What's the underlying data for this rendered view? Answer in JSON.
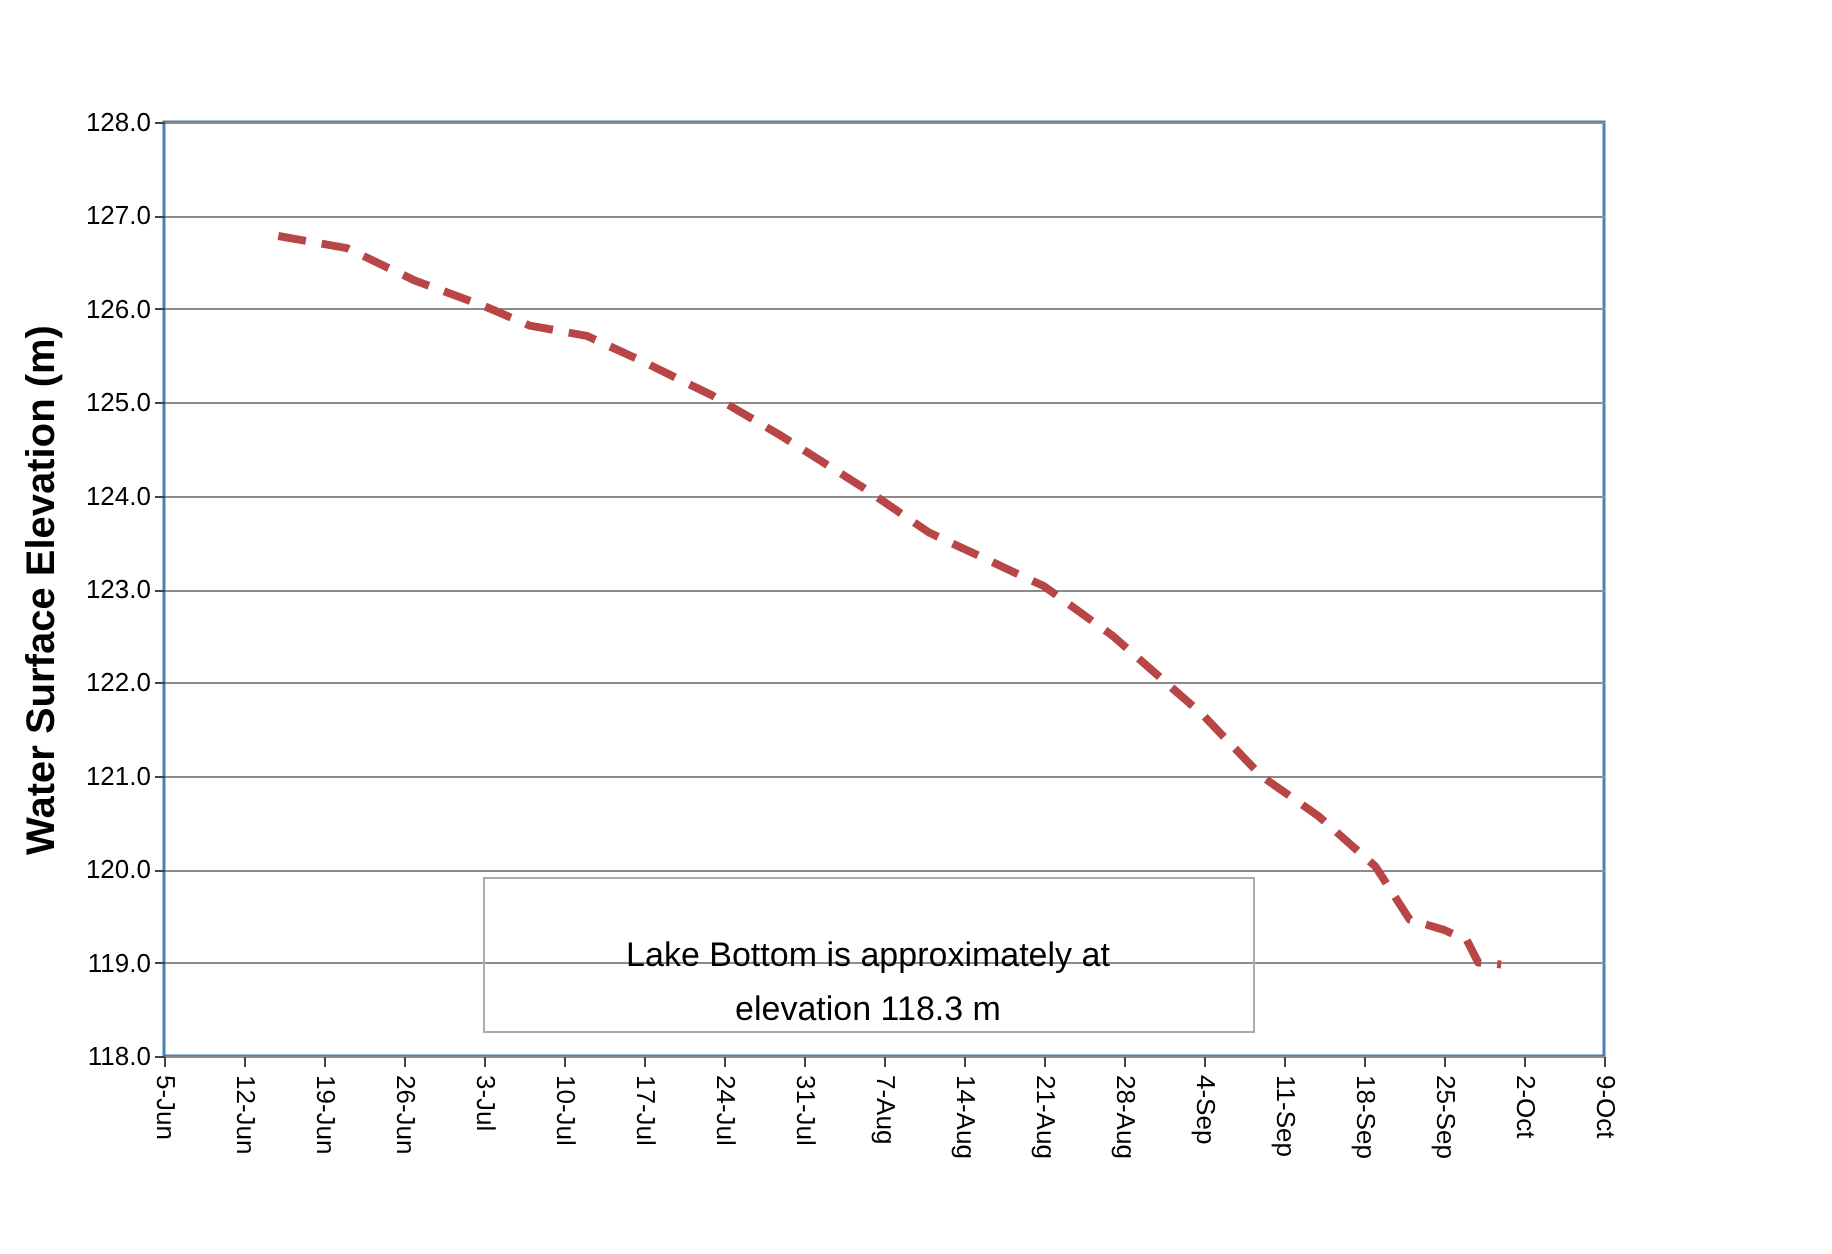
{
  "chart_data": {
    "type": "line",
    "ylabel": "Water Surface Elevation (m)",
    "x": [
      "--06-15",
      "--06-21",
      "--06-27",
      "--07-03",
      "--07-07",
      "--07-12",
      "--07-17",
      "--07-23",
      "--07-29",
      "--08-05",
      "--08-11",
      "--08-21",
      "--08-27",
      "--09-04",
      "--09-09",
      "--09-14",
      "--09-19",
      "--09-22",
      "--09-25",
      "--09-27",
      "--09-28",
      "--09-30"
    ],
    "series": [
      {
        "color": "#b94646",
        "values": [
          126.78,
          126.65,
          126.3,
          126.03,
          125.82,
          125.71,
          125.43,
          125.07,
          124.64,
          124.1,
          123.6,
          123.03,
          122.5,
          121.64,
          121.0,
          120.57,
          120.03,
          119.46,
          119.35,
          119.24,
          119.0,
          118.98
        ]
      }
    ],
    "xlim": [
      "--06-05",
      "--10-09"
    ],
    "xticks": [
      {
        "value": "--06-05",
        "label": "5-Jun"
      },
      {
        "value": "--06-12",
        "label": "12-Jun"
      },
      {
        "value": "--06-19",
        "label": "19-Jun"
      },
      {
        "value": "--06-26",
        "label": "26-Jun"
      },
      {
        "value": "--07-03",
        "label": "3-Jul"
      },
      {
        "value": "--07-10",
        "label": "10-Jul"
      },
      {
        "value": "--07-17",
        "label": "17-Jul"
      },
      {
        "value": "--07-24",
        "label": "24-Jul"
      },
      {
        "value": "--07-31",
        "label": "31-Jul"
      },
      {
        "value": "--08-07",
        "label": "7-Aug"
      },
      {
        "value": "--08-14",
        "label": "14-Aug"
      },
      {
        "value": "--08-21",
        "label": "21-Aug"
      },
      {
        "value": "--08-28",
        "label": "28-Aug"
      },
      {
        "value": "--09-04",
        "label": "4-Sep"
      },
      {
        "value": "--09-11",
        "label": "11-Sep"
      },
      {
        "value": "--09-18",
        "label": "18-Sep"
      },
      {
        "value": "--09-25",
        "label": "25-Sep"
      },
      {
        "value": "--10-02",
        "label": "2-Oct"
      },
      {
        "value": "--10-09",
        "label": "9-Oct"
      }
    ],
    "ylim": [
      118.0,
      128.0
    ],
    "yticks": [
      {
        "value": 118,
        "label": "118.0"
      },
      {
        "value": 119,
        "label": "119.0"
      },
      {
        "value": 120,
        "label": "120.0"
      },
      {
        "value": 121,
        "label": "121.0"
      },
      {
        "value": 122,
        "label": "122.0"
      },
      {
        "value": 123,
        "label": "123.0"
      },
      {
        "value": 124,
        "label": "124.0"
      },
      {
        "value": 125,
        "label": "125.0"
      },
      {
        "value": 126,
        "label": "126.0"
      },
      {
        "value": 127,
        "label": "127.0"
      },
      {
        "value": 128,
        "label": "128.0"
      }
    ],
    "grid": "y",
    "marker": "none",
    "line_style": "dashed",
    "annotations": [
      "Lake Bottom is approximately at\nelevation 118.3 m"
    ]
  }
}
